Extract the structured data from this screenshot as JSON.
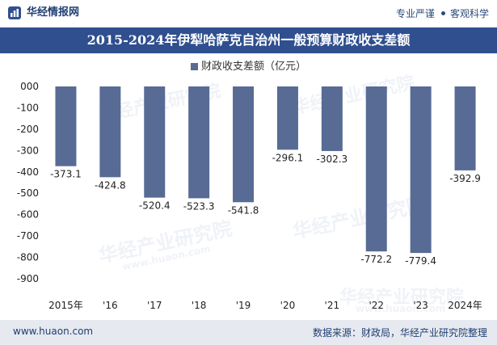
{
  "header": {
    "brand": "华经情报网",
    "tags": [
      "专业严谨",
      "客观科学"
    ]
  },
  "chart_data": {
    "type": "bar",
    "title": "2015-2024年伊犁哈萨克自治州一般预算财政收支差额",
    "categories": [
      "2015年",
      "'16",
      "'17",
      "'18",
      "'19",
      "'20",
      "'21",
      "'22",
      "'23",
      "2024年"
    ],
    "series": [
      {
        "name": "财政收支差额（亿元）",
        "values": [
          -373.1,
          -424.8,
          -520.4,
          -523.3,
          -541.8,
          -296.1,
          -302.3,
          -772.2,
          -779.4,
          -392.9
        ]
      }
    ],
    "value_labels": [
      "-373.1",
      "-424.8",
      "-520.4",
      "-523.3",
      "-541.8",
      "-296.1",
      "-302.3",
      "-772.2",
      "-779.4",
      "-392.9"
    ],
    "yticks": [
      "000",
      "-100",
      "-200",
      "-300",
      "-400",
      "-500",
      "-600",
      "-700",
      "-800",
      "-900"
    ],
    "ylim": [
      -900,
      0
    ],
    "grid": false,
    "legend": "top-center",
    "colors": {
      "bar": "#576b95",
      "title_band": "#2f4f8f",
      "footer_band": "#e6e9ef"
    }
  },
  "watermark": {
    "text": "华经产业研究院",
    "url": "www.huaon.com"
  },
  "footer": {
    "url": "www.huaon.com",
    "source": "数据来源：财政局，华经产业研究院整理"
  }
}
